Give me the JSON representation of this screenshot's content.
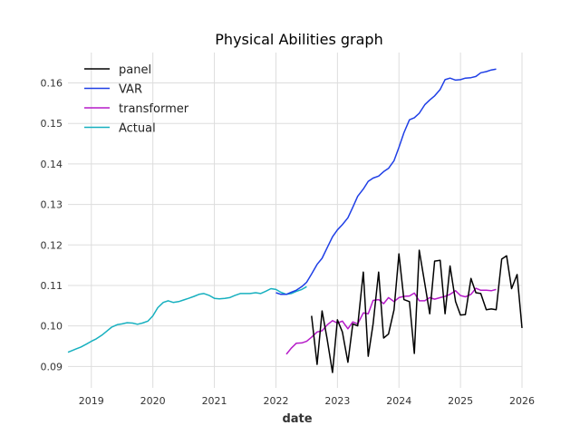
{
  "chart_data": {
    "type": "line",
    "title": "Physical Abilities graph",
    "xlabel": "date",
    "ylabel": "",
    "xlim": [
      2018.62,
      2026.0
    ],
    "ylim": [
      0.0847,
      0.1675
    ],
    "xticks": [
      2019,
      2020,
      2021,
      2022,
      2023,
      2024,
      2025,
      2026
    ],
    "xtick_labels": [
      "2019",
      "2020",
      "2021",
      "2022",
      "2023",
      "2024",
      "2025",
      "2026"
    ],
    "yticks": [
      0.09,
      0.1,
      0.11,
      0.12,
      0.13,
      0.14,
      0.15,
      0.16
    ],
    "ytick_labels": [
      "0.09",
      "0.10",
      "0.11",
      "0.12",
      "0.13",
      "0.14",
      "0.15",
      "0.16"
    ],
    "grid": true,
    "legend_position": "top-left",
    "series": [
      {
        "name": "panel",
        "color": "#000000",
        "x": [
          2022.58,
          2022.67,
          2022.75,
          2022.83,
          2022.92,
          2023.0,
          2023.08,
          2023.17,
          2023.25,
          2023.33,
          2023.42,
          2023.5,
          2023.58,
          2023.67,
          2023.75,
          2023.83,
          2023.92,
          2024.0,
          2024.08,
          2024.17,
          2024.25,
          2024.33,
          2024.42,
          2024.5,
          2024.58,
          2024.67,
          2024.75,
          2024.83,
          2024.92,
          2025.0,
          2025.08,
          2025.17,
          2025.25,
          2025.33,
          2025.42,
          2025.5,
          2025.58,
          2025.67,
          2025.75,
          2025.83,
          2025.92,
          2026.0
        ],
        "y": [
          0.1025,
          0.0905,
          0.1037,
          0.097,
          0.0885,
          0.1015,
          0.0985,
          0.091,
          0.1005,
          0.1,
          0.1133,
          0.0925,
          0.1005,
          0.1133,
          0.097,
          0.098,
          0.104,
          0.1178,
          0.1065,
          0.106,
          0.0932,
          0.1187,
          0.1105,
          0.103,
          0.116,
          0.1162,
          0.103,
          0.1148,
          0.106,
          0.1027,
          0.1028,
          0.1117,
          0.1082,
          0.108,
          0.104,
          0.1042,
          0.104,
          0.1165,
          0.1173,
          0.1092,
          0.1127,
          0.0995
        ]
      },
      {
        "name": "VAR",
        "color": "#1f3fe6",
        "x": [
          2022.0,
          2022.08,
          2022.17,
          2022.25,
          2022.33,
          2022.42,
          2022.5,
          2022.58,
          2022.67,
          2022.75,
          2022.83,
          2022.92,
          2023.0,
          2023.08,
          2023.17,
          2023.25,
          2023.33,
          2023.42,
          2023.5,
          2023.58,
          2023.67,
          2023.75,
          2023.83,
          2023.92,
          2024.0,
          2024.08,
          2024.17,
          2024.25,
          2024.33,
          2024.42,
          2024.5,
          2024.58,
          2024.67,
          2024.75,
          2024.83,
          2024.92,
          2025.0,
          2025.08,
          2025.17,
          2025.25,
          2025.33,
          2025.42,
          2025.5,
          2025.58
        ],
        "y": [
          0.1082,
          0.1078,
          0.1078,
          0.1083,
          0.1088,
          0.1097,
          0.1108,
          0.1128,
          0.1152,
          0.1167,
          0.1192,
          0.122,
          0.1237,
          0.125,
          0.1267,
          0.1293,
          0.132,
          0.1338,
          0.1357,
          0.1365,
          0.137,
          0.1381,
          0.1389,
          0.1408,
          0.1441,
          0.1477,
          0.1509,
          0.1514,
          0.1525,
          0.1546,
          0.1558,
          0.1568,
          0.1584,
          0.1608,
          0.1612,
          0.1607,
          0.1608,
          0.1612,
          0.1613,
          0.1616,
          0.1625,
          0.1628,
          0.1632,
          0.1634
        ]
      },
      {
        "name": "transformer",
        "color": "#b51ac8",
        "x": [
          2022.17,
          2022.25,
          2022.33,
          2022.42,
          2022.5,
          2022.58,
          2022.67,
          2022.75,
          2022.83,
          2022.92,
          2023.0,
          2023.08,
          2023.17,
          2023.25,
          2023.33,
          2023.42,
          2023.5,
          2023.58,
          2023.67,
          2023.75,
          2023.83,
          2023.92,
          2024.0,
          2024.08,
          2024.17,
          2024.25,
          2024.33,
          2024.42,
          2024.5,
          2024.58,
          2024.67,
          2024.75,
          2024.83,
          2024.92,
          2025.0,
          2025.08,
          2025.17,
          2025.25,
          2025.33,
          2025.42,
          2025.5,
          2025.58
        ],
        "y": [
          0.093,
          0.0945,
          0.0957,
          0.0958,
          0.0962,
          0.0972,
          0.0985,
          0.0988,
          0.1002,
          0.1013,
          0.1007,
          0.1012,
          0.0993,
          0.101,
          0.1005,
          0.1032,
          0.103,
          0.1063,
          0.1065,
          0.1055,
          0.107,
          0.106,
          0.107,
          0.1073,
          0.1074,
          0.1081,
          0.1062,
          0.1062,
          0.107,
          0.1066,
          0.107,
          0.1073,
          0.1078,
          0.1087,
          0.1075,
          0.1072,
          0.1078,
          0.1093,
          0.1088,
          0.1088,
          0.1087,
          0.109
        ]
      },
      {
        "name": "Actual",
        "color": "#17b0bf",
        "x": [
          2018.62,
          2018.67,
          2018.75,
          2018.83,
          2018.92,
          2019.0,
          2019.08,
          2019.17,
          2019.25,
          2019.33,
          2019.42,
          2019.5,
          2019.58,
          2019.67,
          2019.75,
          2019.83,
          2019.92,
          2020.0,
          2020.08,
          2020.17,
          2020.25,
          2020.33,
          2020.42,
          2020.5,
          2020.58,
          2020.67,
          2020.75,
          2020.83,
          2020.92,
          2021.0,
          2021.08,
          2021.17,
          2021.25,
          2021.33,
          2021.42,
          2021.5,
          2021.58,
          2021.67,
          2021.75,
          2021.83,
          2021.92,
          2022.0,
          2022.08,
          2022.17,
          2022.25,
          2022.33,
          2022.42,
          2022.5
        ],
        "y": [
          0.0935,
          0.0938,
          0.0943,
          0.0948,
          0.0955,
          0.0962,
          0.0968,
          0.0977,
          0.0987,
          0.0997,
          0.1003,
          0.1005,
          0.1008,
          0.1007,
          0.1004,
          0.1007,
          0.1012,
          0.1025,
          0.1045,
          0.1058,
          0.1062,
          0.1058,
          0.106,
          0.1064,
          0.1068,
          0.1073,
          0.1078,
          0.108,
          0.1075,
          0.1068,
          0.1067,
          0.1068,
          0.107,
          0.1075,
          0.108,
          0.108,
          0.108,
          0.1082,
          0.108,
          0.1085,
          0.1092,
          0.109,
          0.1083,
          0.1078,
          0.108,
          0.1085,
          0.109,
          0.1097
        ]
      }
    ]
  }
}
